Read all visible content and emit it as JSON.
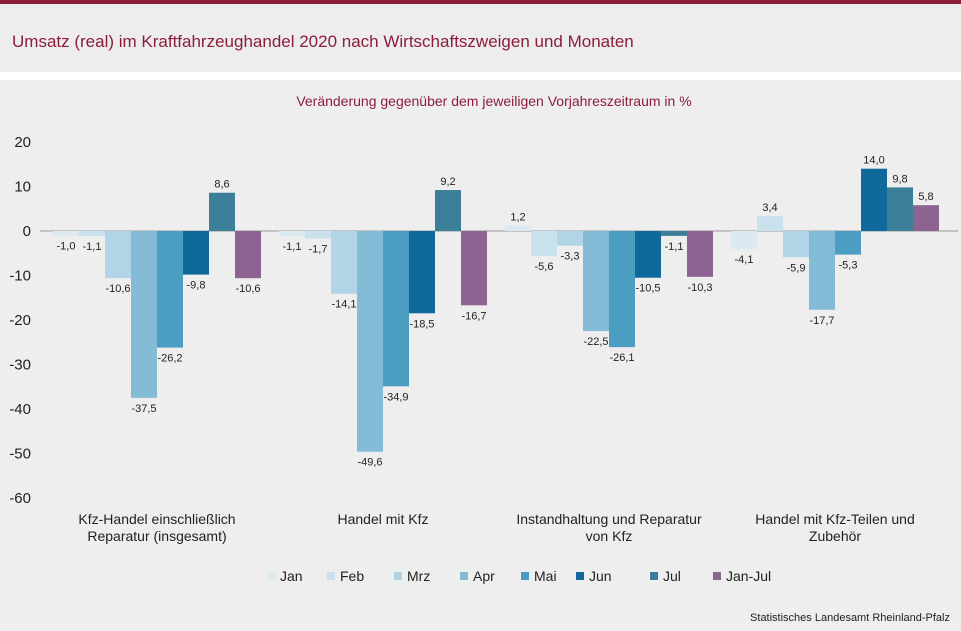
{
  "title": "Umsatz (real) im Kraftfahrzeughandel 2020 nach Wirtschaftszweigen und Monaten",
  "source": "Statistisches Landesamt Rheinland-Pfalz",
  "chart_data": {
    "type": "bar",
    "subtitle": "Veränderung  gegenüber  dem jeweiligen Vorjahreszeitraum  in %",
    "categories": [
      [
        "Kfz-Handel einschließlich",
        "Reparatur (insgesamt)"
      ],
      [
        "Handel mit Kfz"
      ],
      [
        "Instandhaltung und Reparatur",
        "von Kfz"
      ],
      [
        "Handel mit Kfz-Teilen und",
        "Zubehör"
      ]
    ],
    "series": [
      {
        "name": "Jan",
        "color": "#dbe9f1",
        "values": [
          -1.0,
          -1.1,
          1.2,
          -4.1
        ],
        "labels": [
          "-1,0",
          "-1,1",
          "1,2",
          "-4,1"
        ]
      },
      {
        "name": "Feb",
        "color": "#c9e1ec",
        "values": [
          -1.1,
          -1.7,
          -5.6,
          3.4
        ],
        "labels": [
          "-1,1",
          "-1,7",
          "-5,6",
          "3,4"
        ]
      },
      {
        "name": "Mrz",
        "color": "#b1d5e6",
        "values": [
          -10.6,
          -14.1,
          -3.3,
          -5.9
        ],
        "labels": [
          "-10,6",
          "-14,1",
          "-3,3",
          "-5,9"
        ]
      },
      {
        "name": "Apr",
        "color": "#84bcd8",
        "values": [
          -37.5,
          -49.6,
          -22.5,
          -17.7
        ],
        "labels": [
          "-37,5",
          "-49,6",
          "-22,5",
          "-17,7"
        ]
      },
      {
        "name": "Mai",
        "color": "#4b9dc2",
        "values": [
          -26.2,
          -34.9,
          -26.1,
          -5.3
        ],
        "labels": [
          "-26,2",
          "-34,9",
          "-26,1",
          "-5,3"
        ]
      },
      {
        "name": "Jun",
        "color": "#0f6a9b",
        "values": [
          -9.8,
          -18.5,
          -10.5,
          14.0
        ],
        "labels": [
          "-9,8",
          "-18,5",
          "-10,5",
          "14,0"
        ]
      },
      {
        "name": "Jul",
        "color": "#3b7f98",
        "values": [
          8.6,
          9.2,
          -1.1,
          9.8
        ],
        "labels": [
          "8,6",
          "9,2",
          "-1,1",
          "9,8"
        ]
      },
      {
        "name": "Jan-Jul",
        "color": "#8d6391",
        "values": [
          -10.6,
          -16.7,
          -10.3,
          5.8
        ],
        "labels": [
          "-10,6",
          "-16,7",
          "-10,3",
          "5,8"
        ]
      }
    ],
    "yticks": [
      "20",
      "10",
      "0",
      "-10",
      "-20",
      "-30",
      "-40",
      "-50",
      "-60"
    ],
    "ylim": [
      -60,
      20
    ],
    "grid": false,
    "legend_position": "bottom"
  }
}
